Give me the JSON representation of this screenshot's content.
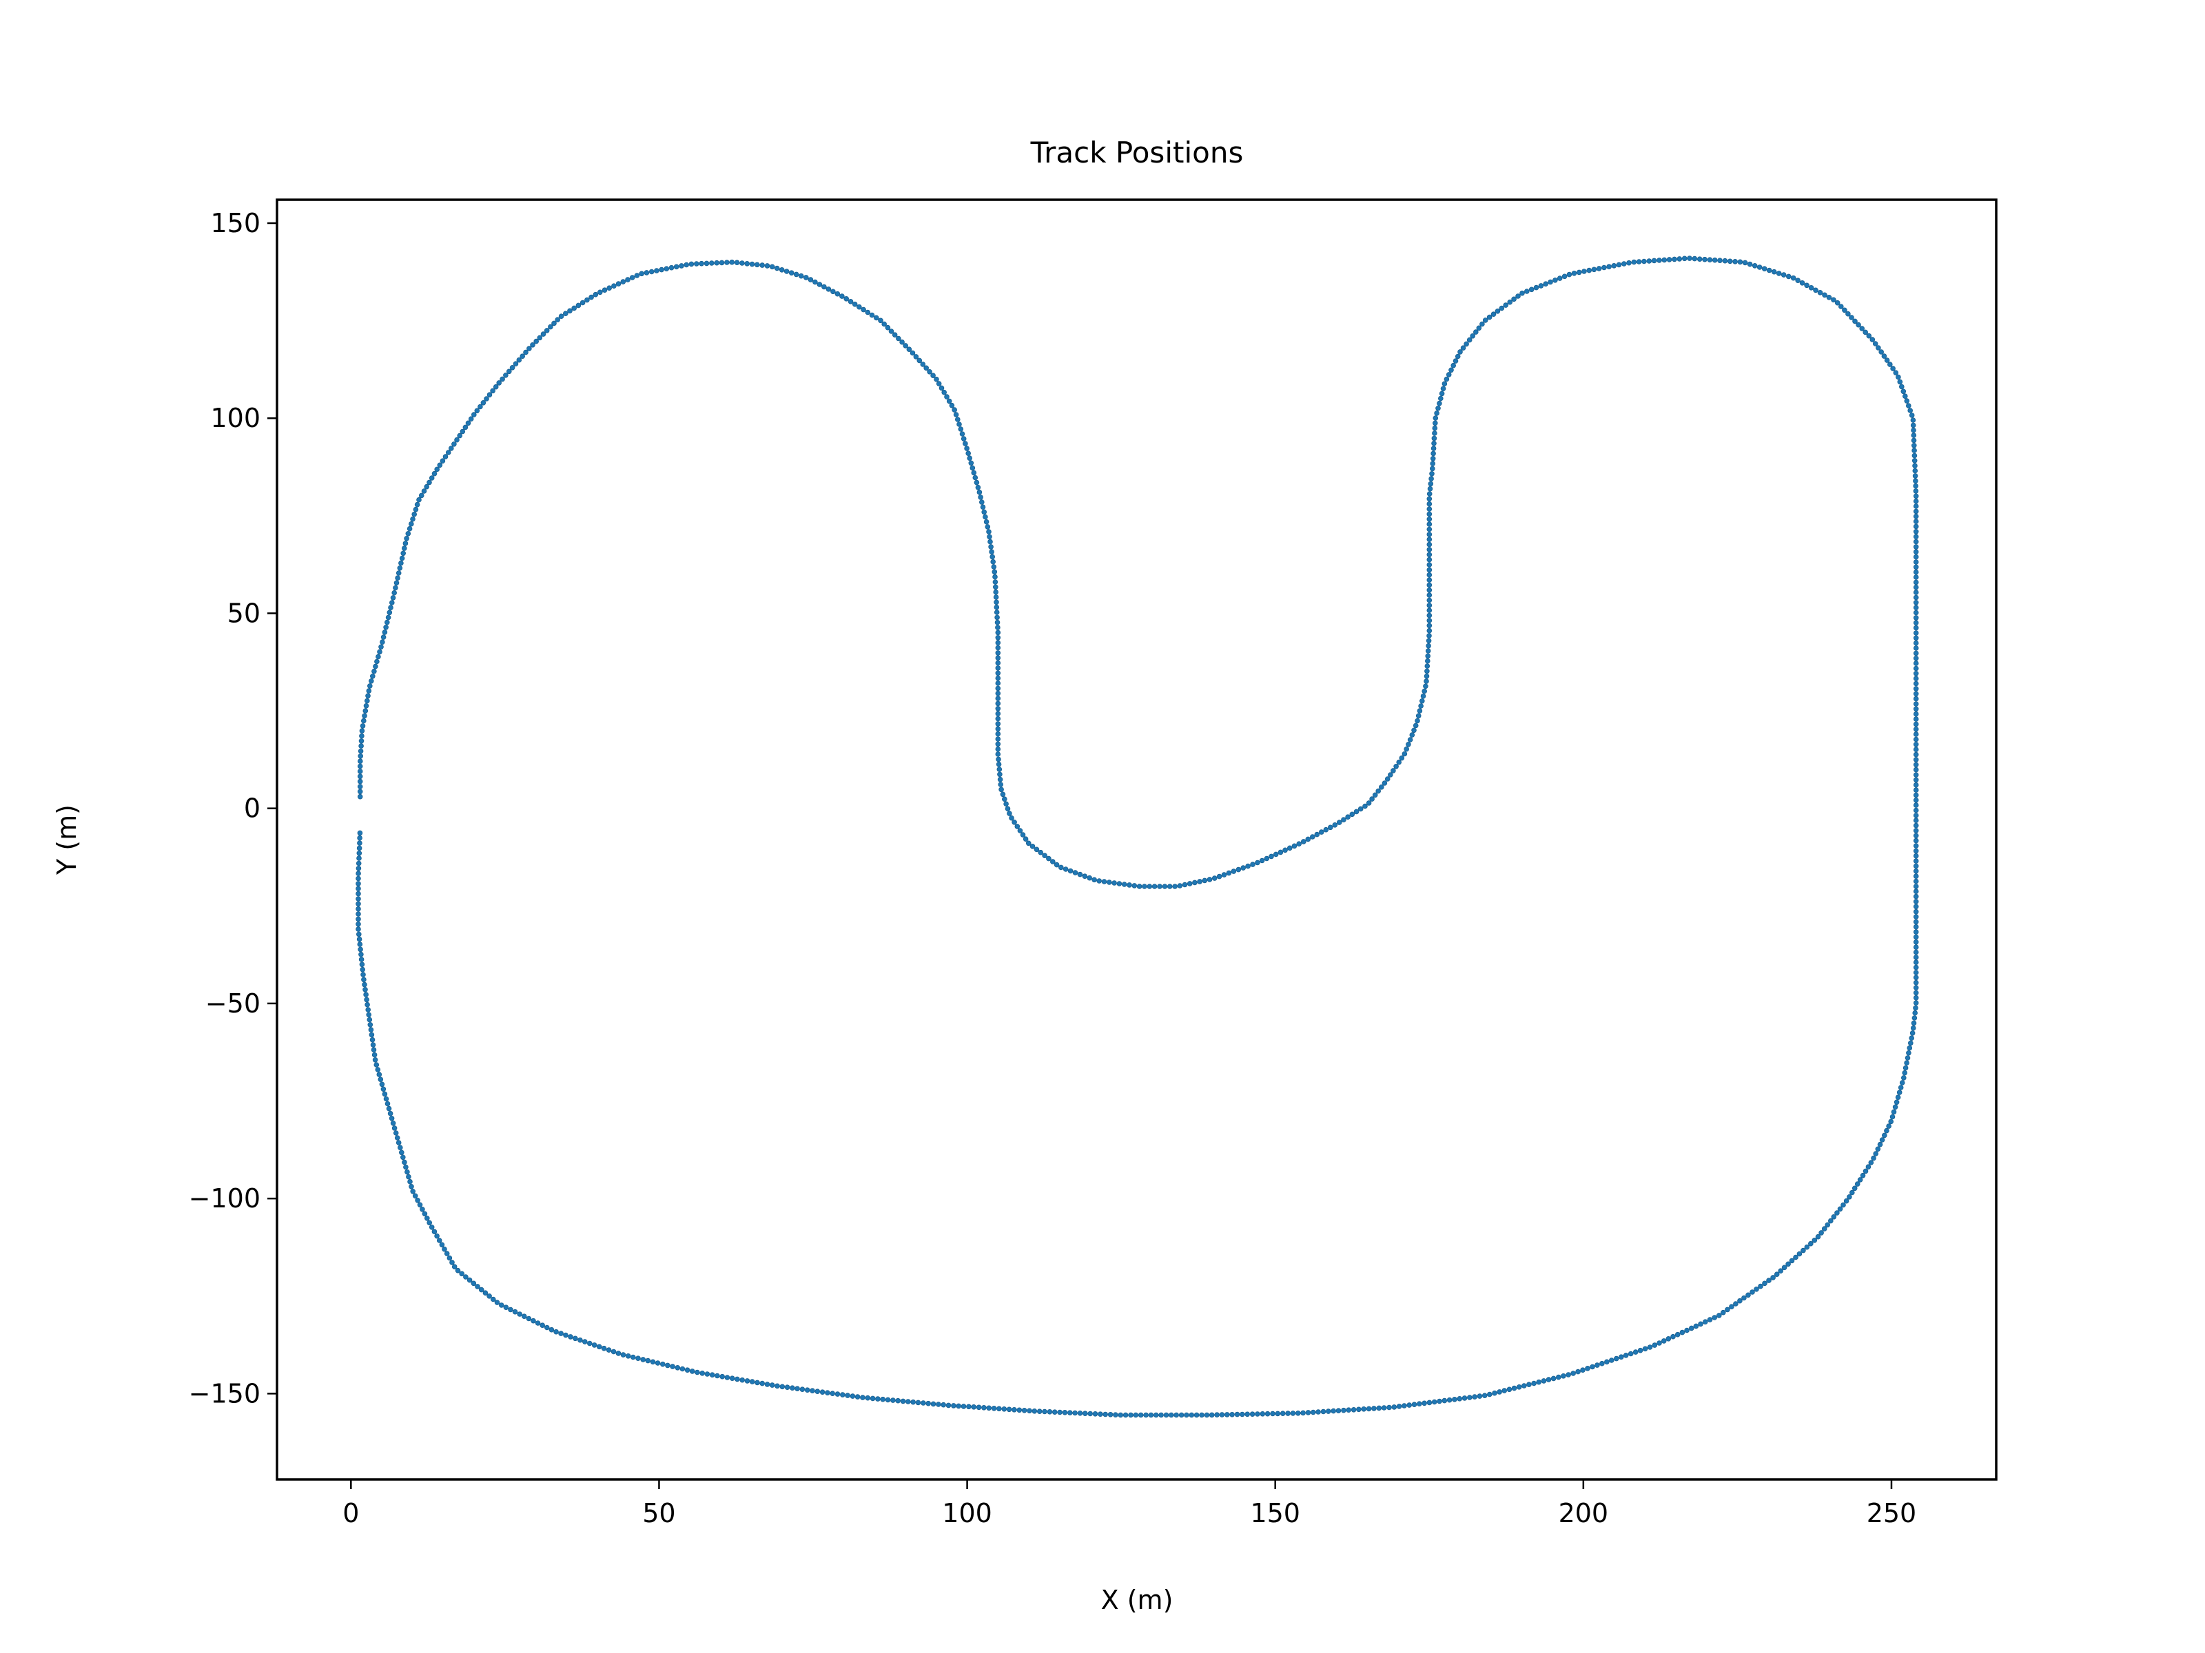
{
  "chart_data": {
    "type": "scatter",
    "title": "Track Positions",
    "xlabel": "X (m)",
    "ylabel": "Y (m)",
    "xlim": [
      -12,
      267
    ],
    "ylim": [
      -172,
      156
    ],
    "xticks": [
      0,
      50,
      100,
      150,
      200,
      250
    ],
    "yticks": [
      -150,
      -100,
      -50,
      0,
      50,
      100,
      150
    ],
    "xtick_labels": [
      "0",
      "50",
      "100",
      "150",
      "200",
      "250"
    ],
    "ytick_labels": [
      "−150",
      "−100",
      "−50",
      "0",
      "50",
      "100",
      "150"
    ],
    "grid": false,
    "legend": "none",
    "marker_color": "#1f77b4",
    "series": [
      {
        "x": [
          1.5,
          1.5,
          1.8,
          3,
          5,
          7,
          9,
          11,
          14,
          17,
          20,
          24,
          29,
          34,
          40,
          47,
          55,
          62,
          68,
          74,
          80,
          86,
          91,
          95,
          98,
          100,
          102,
          103.5,
          104.5,
          105,
          105,
          105,
          105,
          105.5,
          107,
          110,
          115,
          121,
          128,
          134,
          140,
          147,
          154,
          160,
          165,
          168,
          171,
          173,
          174.5,
          175,
          175,
          175,
          175.5,
          176,
          177.5,
          180,
          184,
          190,
          198,
          208,
          217,
          226,
          234,
          241,
          247,
          251,
          253.5,
          254,
          254,
          254,
          254,
          254,
          254,
          254,
          253.5,
          252,
          250,
          247,
          243,
          238,
          231,
          222,
          211,
          198,
          184,
          169,
          154,
          139,
          125,
          111,
          97,
          83,
          69,
          56,
          44,
          33,
          24,
          17,
          13,
          10,
          8,
          6,
          4,
          3,
          2,
          1.2,
          1.2,
          1.5
        ],
        "y": [
          3,
          12,
          20,
          31,
          42,
          55,
          69,
          79,
          87,
          94,
          101,
          109,
          118,
          126,
          132,
          137,
          139.5,
          140,
          139,
          136,
          131,
          125,
          117,
          110,
          102,
          92,
          81,
          71,
          60,
          45,
          32,
          21,
          14,
          5,
          -2,
          -9,
          -15,
          -18.5,
          -20,
          -20,
          -18,
          -14,
          -9,
          -4,
          1,
          7,
          14,
          22,
          32,
          45,
          60,
          80,
          87,
          100,
          109,
          117,
          125,
          132,
          137,
          140,
          141,
          140,
          136,
          130,
          120,
          111,
          100,
          80,
          50,
          20,
          0,
          -25,
          -40,
          -50,
          -57,
          -69,
          -80,
          -90,
          -100,
          -110,
          -120,
          -130,
          -138,
          -145,
          -150.5,
          -153.5,
          -155,
          -155.5,
          -155.5,
          -154.5,
          -153,
          -151,
          -148,
          -144.5,
          -140,
          -134,
          -127,
          -118,
          -107,
          -98,
          -87,
          -76,
          -65,
          -54,
          -43,
          -31,
          -17,
          -5
        ]
      }
    ]
  }
}
